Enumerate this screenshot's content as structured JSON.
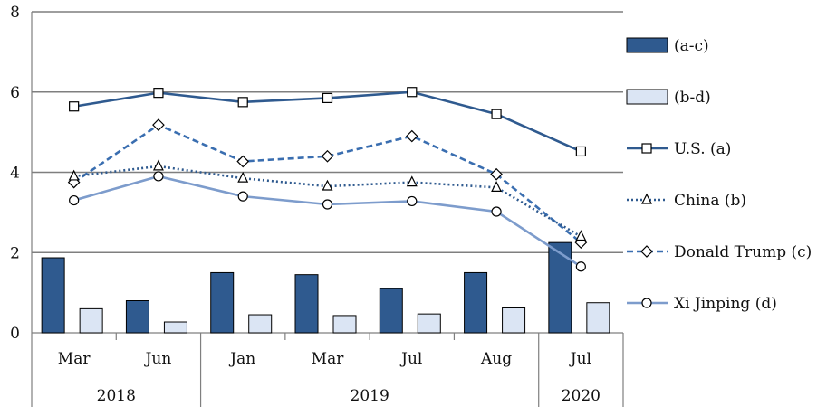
{
  "chart_data": {
    "type": "bar",
    "title": "",
    "xlabel": "",
    "ylabel": "",
    "ylim": [
      0,
      8
    ],
    "yticks": [
      "0",
      "2",
      "4",
      "6",
      "8"
    ],
    "grid": "horizontal",
    "legend_position": "right",
    "categories": [
      "Mar",
      "Jun",
      "Jan",
      "Mar",
      "Jul",
      "Aug",
      "Jul"
    ],
    "year_groups": [
      {
        "label": "2018",
        "count": 2
      },
      {
        "label": "2019",
        "count": 4
      },
      {
        "label": "2020",
        "count": 1
      }
    ],
    "bar_series": [
      {
        "name": "(a-c)",
        "color": "#2f5a8f",
        "values": [
          1.87,
          0.8,
          1.5,
          1.45,
          1.1,
          1.5,
          2.25
        ]
      },
      {
        "name": "(b-d)",
        "color": "#dbe5f4",
        "values": [
          0.6,
          0.27,
          0.45,
          0.43,
          0.47,
          0.62,
          0.75
        ]
      }
    ],
    "line_series": [
      {
        "name": "U.S. (a)",
        "color": "#2f5a8f",
        "dash": "solid",
        "marker": "square",
        "values": [
          5.64,
          5.98,
          5.75,
          5.85,
          6.0,
          5.45,
          4.52
        ]
      },
      {
        "name": "China (b)",
        "color": "#2f5a8f",
        "dash": "dotted",
        "marker": "triangle",
        "values": [
          3.9,
          4.15,
          3.85,
          3.65,
          3.75,
          3.62,
          2.4
        ]
      },
      {
        "name": "Donald Trump (c)",
        "color": "#3a6eb0",
        "dash": "dashed",
        "marker": "diamond",
        "values": [
          3.75,
          5.18,
          4.27,
          4.4,
          4.9,
          3.95,
          2.25
        ]
      },
      {
        "name": "Xi Jinping (d)",
        "color": "#7d9ccc",
        "dash": "solid",
        "marker": "circle",
        "values": [
          3.3,
          3.9,
          3.4,
          3.2,
          3.28,
          3.02,
          1.65
        ]
      }
    ]
  }
}
